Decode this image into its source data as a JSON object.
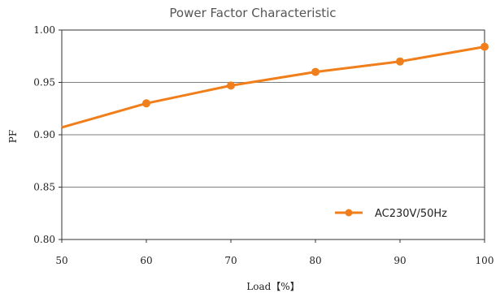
{
  "chart_data": {
    "type": "line",
    "title": "Power Factor Characteristic",
    "xlabel": "Load【%】",
    "ylabel": "PF",
    "xlim": [
      50,
      100
    ],
    "ylim": [
      0.8,
      1.0
    ],
    "x_ticks": [
      "50",
      "60",
      "70",
      "80",
      "90",
      "100"
    ],
    "y_ticks": [
      "0.80",
      "0.85",
      "0.90",
      "0.95",
      "1.00"
    ],
    "grid": "horizontal",
    "legend_position": "bottom-right",
    "series": [
      {
        "name": "AC230V/50Hz",
        "color": "#F07F1B",
        "line_start": {
          "x": 50,
          "y": 0.907
        },
        "x": [
          60,
          70,
          80,
          90,
          100
        ],
        "y": [
          0.93,
          0.947,
          0.96,
          0.97,
          0.984
        ]
      }
    ]
  }
}
